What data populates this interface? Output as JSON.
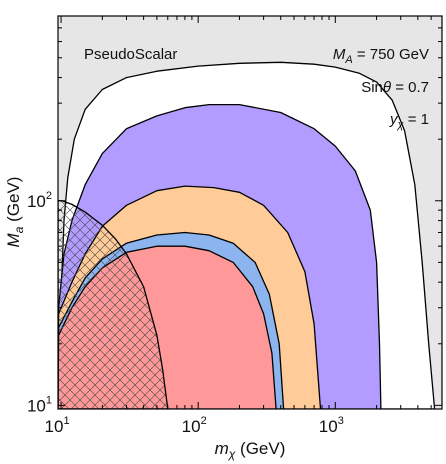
{
  "chart_data": {
    "type": "area",
    "xlabel_main": "m",
    "xlabel_sub": "χ",
    "xlabel_unit": " (GeV)",
    "ylabel_main": "M",
    "ylabel_sub": "a",
    "ylabel_unit": " (GeV)",
    "xscale": "log",
    "yscale": "log",
    "xlim": [
      9.5,
      6000
    ],
    "ylim": [
      9.6,
      800
    ],
    "x_ticks": [
      {
        "value": 10,
        "base": "10",
        "exp": "1"
      },
      {
        "value": 100,
        "base": "10",
        "exp": "2"
      },
      {
        "value": 1000,
        "base": "10",
        "exp": "3"
      }
    ],
    "y_ticks": [
      {
        "value": 10,
        "base": "10",
        "exp": "1"
      },
      {
        "value": 100,
        "base": "10",
        "exp": "2"
      }
    ],
    "annotations": {
      "model": "PseudoScalar",
      "ma_sym": "M",
      "ma_sub": "A",
      "ma_val": " = 750 GeV",
      "sin_pre": "Sin",
      "sin_theta": "θ",
      "sin_val": " = 0.7",
      "y_sym": "y",
      "y_sub": "χ",
      "y_val": " = 1"
    },
    "colors": {
      "excluded_background": "#e6e6e6",
      "white_region": "#ffffff",
      "purple": "#b39cff",
      "orange": "#ffcc99",
      "blue": "#8cb4ee",
      "red": "#ff9999"
    },
    "regions": [
      {
        "key": "white",
        "color": "#ffffff",
        "points": [
          [
            9.5,
            9.6
          ],
          [
            9.8,
            18
          ],
          [
            10.1,
            40
          ],
          [
            10.5,
            80
          ],
          [
            11.2,
            130
          ],
          [
            12.5,
            200
          ],
          [
            15,
            280
          ],
          [
            20,
            350
          ],
          [
            30,
            400
          ],
          [
            50,
            430
          ],
          [
            100,
            455
          ],
          [
            200,
            470
          ],
          [
            400,
            475
          ],
          [
            700,
            465
          ],
          [
            1000,
            450
          ],
          [
            1500,
            420
          ],
          [
            2000,
            380
          ],
          [
            2600,
            310
          ],
          [
            3200,
            220
          ],
          [
            3800,
            120
          ],
          [
            4300,
            50
          ],
          [
            4800,
            20
          ],
          [
            5300,
            9.6
          ]
        ]
      },
      {
        "key": "purple",
        "color": "#b39cff",
        "points": [
          [
            9.5,
            9.6
          ],
          [
            9.6,
            30
          ],
          [
            10.5,
            55
          ],
          [
            12,
            80
          ],
          [
            15,
            120
          ],
          [
            20,
            170
          ],
          [
            30,
            225
          ],
          [
            50,
            260
          ],
          [
            80,
            285
          ],
          [
            120,
            295
          ],
          [
            200,
            295
          ],
          [
            400,
            270
          ],
          [
            700,
            225
          ],
          [
            1000,
            185
          ],
          [
            1400,
            140
          ],
          [
            1800,
            90
          ],
          [
            2000,
            50
          ],
          [
            2100,
            20
          ],
          [
            2150,
            9.6
          ]
        ]
      },
      {
        "key": "orange",
        "color": "#ffcc99",
        "points": [
          [
            9.5,
            9.6
          ],
          [
            9.6,
            28
          ],
          [
            12,
            40
          ],
          [
            15,
            55
          ],
          [
            20,
            75
          ],
          [
            30,
            95
          ],
          [
            50,
            112
          ],
          [
            80,
            118
          ],
          [
            130,
            116
          ],
          [
            200,
            110
          ],
          [
            300,
            95
          ],
          [
            450,
            70
          ],
          [
            600,
            45
          ],
          [
            700,
            25
          ],
          [
            780,
            9.6
          ]
        ]
      },
      {
        "key": "blue",
        "color": "#8cb4ee",
        "points": [
          [
            9.5,
            9.6
          ],
          [
            9.6,
            24
          ],
          [
            12,
            32
          ],
          [
            15,
            42
          ],
          [
            20,
            52
          ],
          [
            30,
            62
          ],
          [
            50,
            68
          ],
          [
            80,
            70
          ],
          [
            120,
            68
          ],
          [
            180,
            62
          ],
          [
            260,
            50
          ],
          [
            330,
            35
          ],
          [
            390,
            20
          ],
          [
            420,
            9.6
          ]
        ]
      },
      {
        "key": "red",
        "color": "#ff9999",
        "points": [
          [
            9.5,
            9.6
          ],
          [
            9.6,
            22
          ],
          [
            12,
            30
          ],
          [
            15,
            38
          ],
          [
            20,
            47
          ],
          [
            30,
            56
          ],
          [
            50,
            60
          ],
          [
            80,
            60
          ],
          [
            120,
            57
          ],
          [
            180,
            50
          ],
          [
            250,
            38
          ],
          [
            300,
            28
          ],
          [
            345,
            18
          ],
          [
            370,
            9.6
          ]
        ]
      }
    ],
    "hatched_region": {
      "points": [
        [
          9.5,
          9.6
        ],
        [
          9.5,
          100
        ],
        [
          10.2,
          100
        ],
        [
          12,
          96
        ],
        [
          15,
          88
        ],
        [
          20,
          76
        ],
        [
          25,
          65
        ],
        [
          30,
          55
        ],
        [
          40,
          38
        ],
        [
          50,
          22
        ],
        [
          55,
          15
        ],
        [
          60,
          9.6
        ]
      ]
    }
  }
}
